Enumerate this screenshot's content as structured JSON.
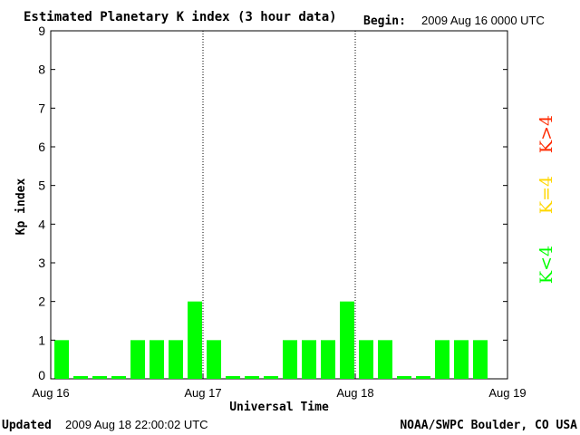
{
  "header": {
    "title": "Estimated Planetary K index (3 hour data)",
    "begin_label": "Begin:",
    "begin_value": "2009 Aug 16 0000 UTC"
  },
  "footer": {
    "updated_label": "Updated",
    "updated_value": "2009 Aug 18 22:00:02 UTC",
    "source": "NOAA/SWPC Boulder, CO USA"
  },
  "legend": [
    {
      "label": "K<4",
      "color": "#00ff00"
    },
    {
      "label": "K=4",
      "color": "#ffd700"
    },
    {
      "label": "K>4",
      "color": "#ff2a00"
    }
  ],
  "chart_data": {
    "type": "bar",
    "ylabel": "Kp index",
    "xlabel": "Universal Time",
    "ylim": [
      0,
      9
    ],
    "yticks": [
      "0",
      "1",
      "2",
      "3",
      "4",
      "5",
      "6",
      "7",
      "8",
      "9"
    ],
    "xticks": [
      "Aug 16",
      "Aug 17",
      "Aug 18",
      "Aug 19"
    ],
    "bar_color": "#00ff00",
    "values": [
      1,
      0,
      0,
      0,
      1,
      1,
      1,
      2,
      1,
      0,
      0,
      0,
      1,
      1,
      1,
      2,
      1,
      1,
      0,
      0,
      1,
      1,
      1
    ]
  }
}
